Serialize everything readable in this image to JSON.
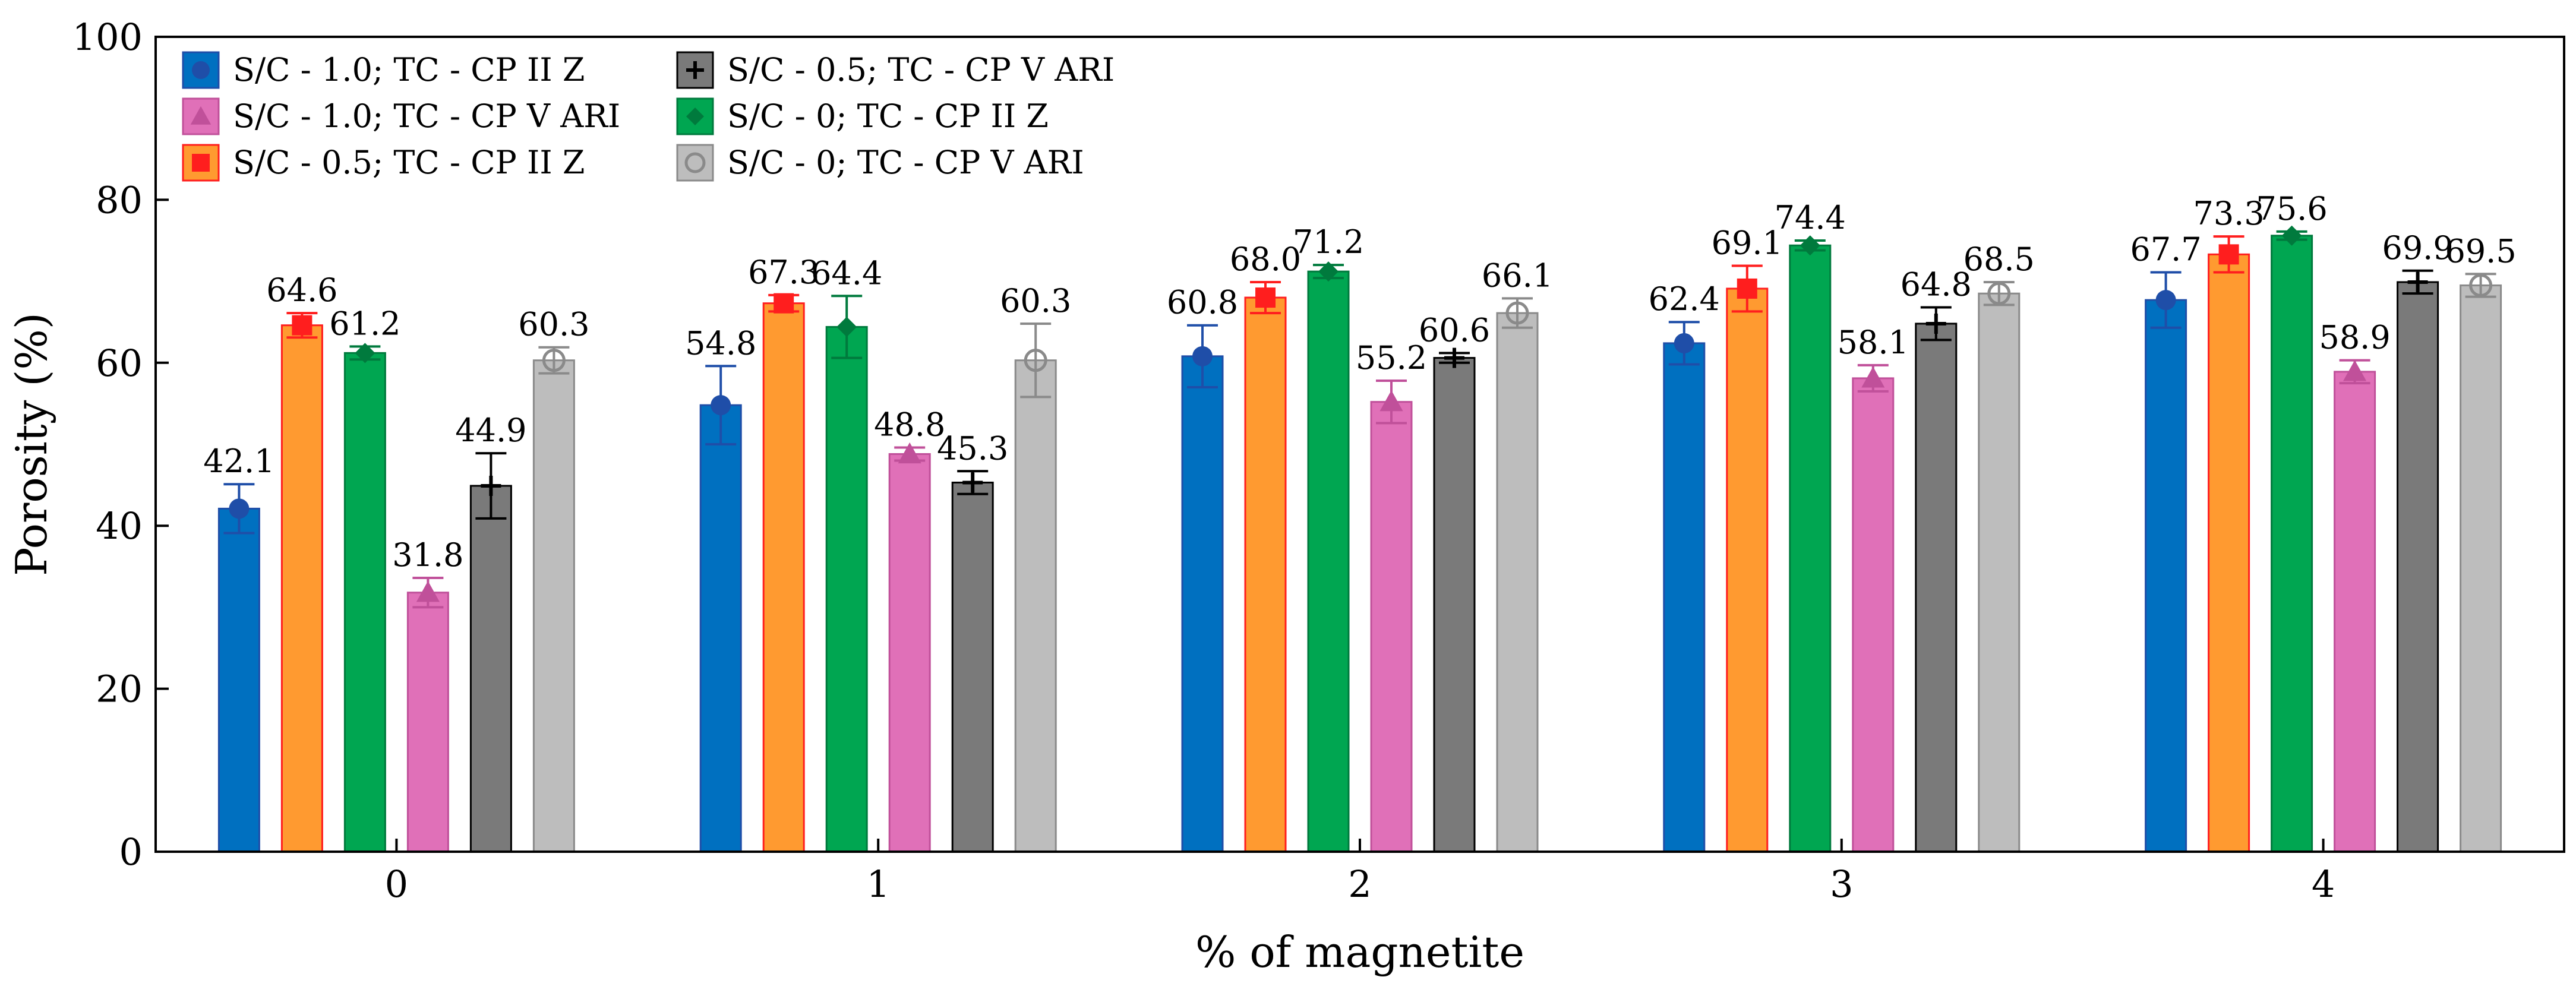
{
  "chart_data": {
    "type": "bar",
    "title": "",
    "xlabel": "% of magnetite",
    "ylabel": "Porosity (%)",
    "ylim": [
      0,
      100
    ],
    "yticks": [
      0,
      20,
      40,
      60,
      80,
      100
    ],
    "grid": false,
    "legend_position": "top-left",
    "categories": [
      "0",
      "1",
      "2",
      "3",
      "4"
    ],
    "series": [
      {
        "name": "S/C - 1.0; TC - CP II Z",
        "color": "#0070c0",
        "marker": "circle",
        "marker_color": "#1f4ea8",
        "values": [
          42.1,
          54.8,
          60.8,
          62.4,
          67.7
        ],
        "labels": [
          "42.1",
          "54.8",
          "60.8",
          "62.4",
          "67.7"
        ],
        "errors": [
          3.0,
          4.8,
          3.8,
          2.6,
          3.4
        ]
      },
      {
        "name": "S/C - 1.0; TC - CP V ARI",
        "color": "#e070b8",
        "marker": "triangle",
        "marker_color": "#c0509a",
        "values": [
          31.8,
          48.8,
          55.2,
          58.1,
          58.9
        ],
        "labels": [
          "31.8",
          "48.8",
          "55.2",
          "58.1",
          "58.9"
        ],
        "errors": [
          1.8,
          0.8,
          2.6,
          1.6,
          1.4
        ]
      },
      {
        "name": "S/C - 0.5; TC - CP II Z",
        "color": "#ff9a30",
        "marker": "square",
        "marker_color": "#ff1e1e",
        "values": [
          64.6,
          67.3,
          68.0,
          69.1,
          73.3
        ],
        "labels": [
          "64.6",
          "67.3",
          "68.0",
          "69.1",
          "73.3"
        ],
        "errors": [
          1.5,
          1.0,
          1.9,
          2.8,
          2.2
        ]
      },
      {
        "name": "S/C - 0.5; TC - CP V ARI",
        "color": "#7a7a7a",
        "marker": "plus",
        "marker_color": "#000000",
        "values": [
          44.9,
          45.3,
          60.6,
          64.8,
          69.9
        ],
        "labels": [
          "44.9",
          "45.3",
          "60.6",
          "64.8",
          "69.9"
        ],
        "errors": [
          4.0,
          1.4,
          0.6,
          2.0,
          1.4
        ]
      },
      {
        "name": "S/C - 0; TC - CP II Z",
        "color": "#00a651",
        "marker": "diamond",
        "marker_color": "#007a3d",
        "values": [
          61.2,
          64.4,
          71.2,
          74.4,
          75.6
        ],
        "labels": [
          "61.2",
          "64.4",
          "71.2",
          "74.4",
          "75.6"
        ],
        "errors": [
          0.8,
          3.8,
          0.8,
          0.6,
          0.5
        ]
      },
      {
        "name": "S/C - 0; TC - CP V ARI",
        "color": "#bdbdbd",
        "marker": "open-circle",
        "marker_color": "#8a8a8a",
        "values": [
          60.3,
          60.3,
          66.1,
          68.5,
          69.5
        ],
        "labels": [
          "60.3",
          "60.3",
          "66.1",
          "68.5",
          "69.5"
        ],
        "errors": [
          1.6,
          4.5,
          1.8,
          1.4,
          1.4
        ]
      }
    ],
    "bar_order": [
      0,
      2,
      4,
      1,
      3,
      5
    ]
  }
}
